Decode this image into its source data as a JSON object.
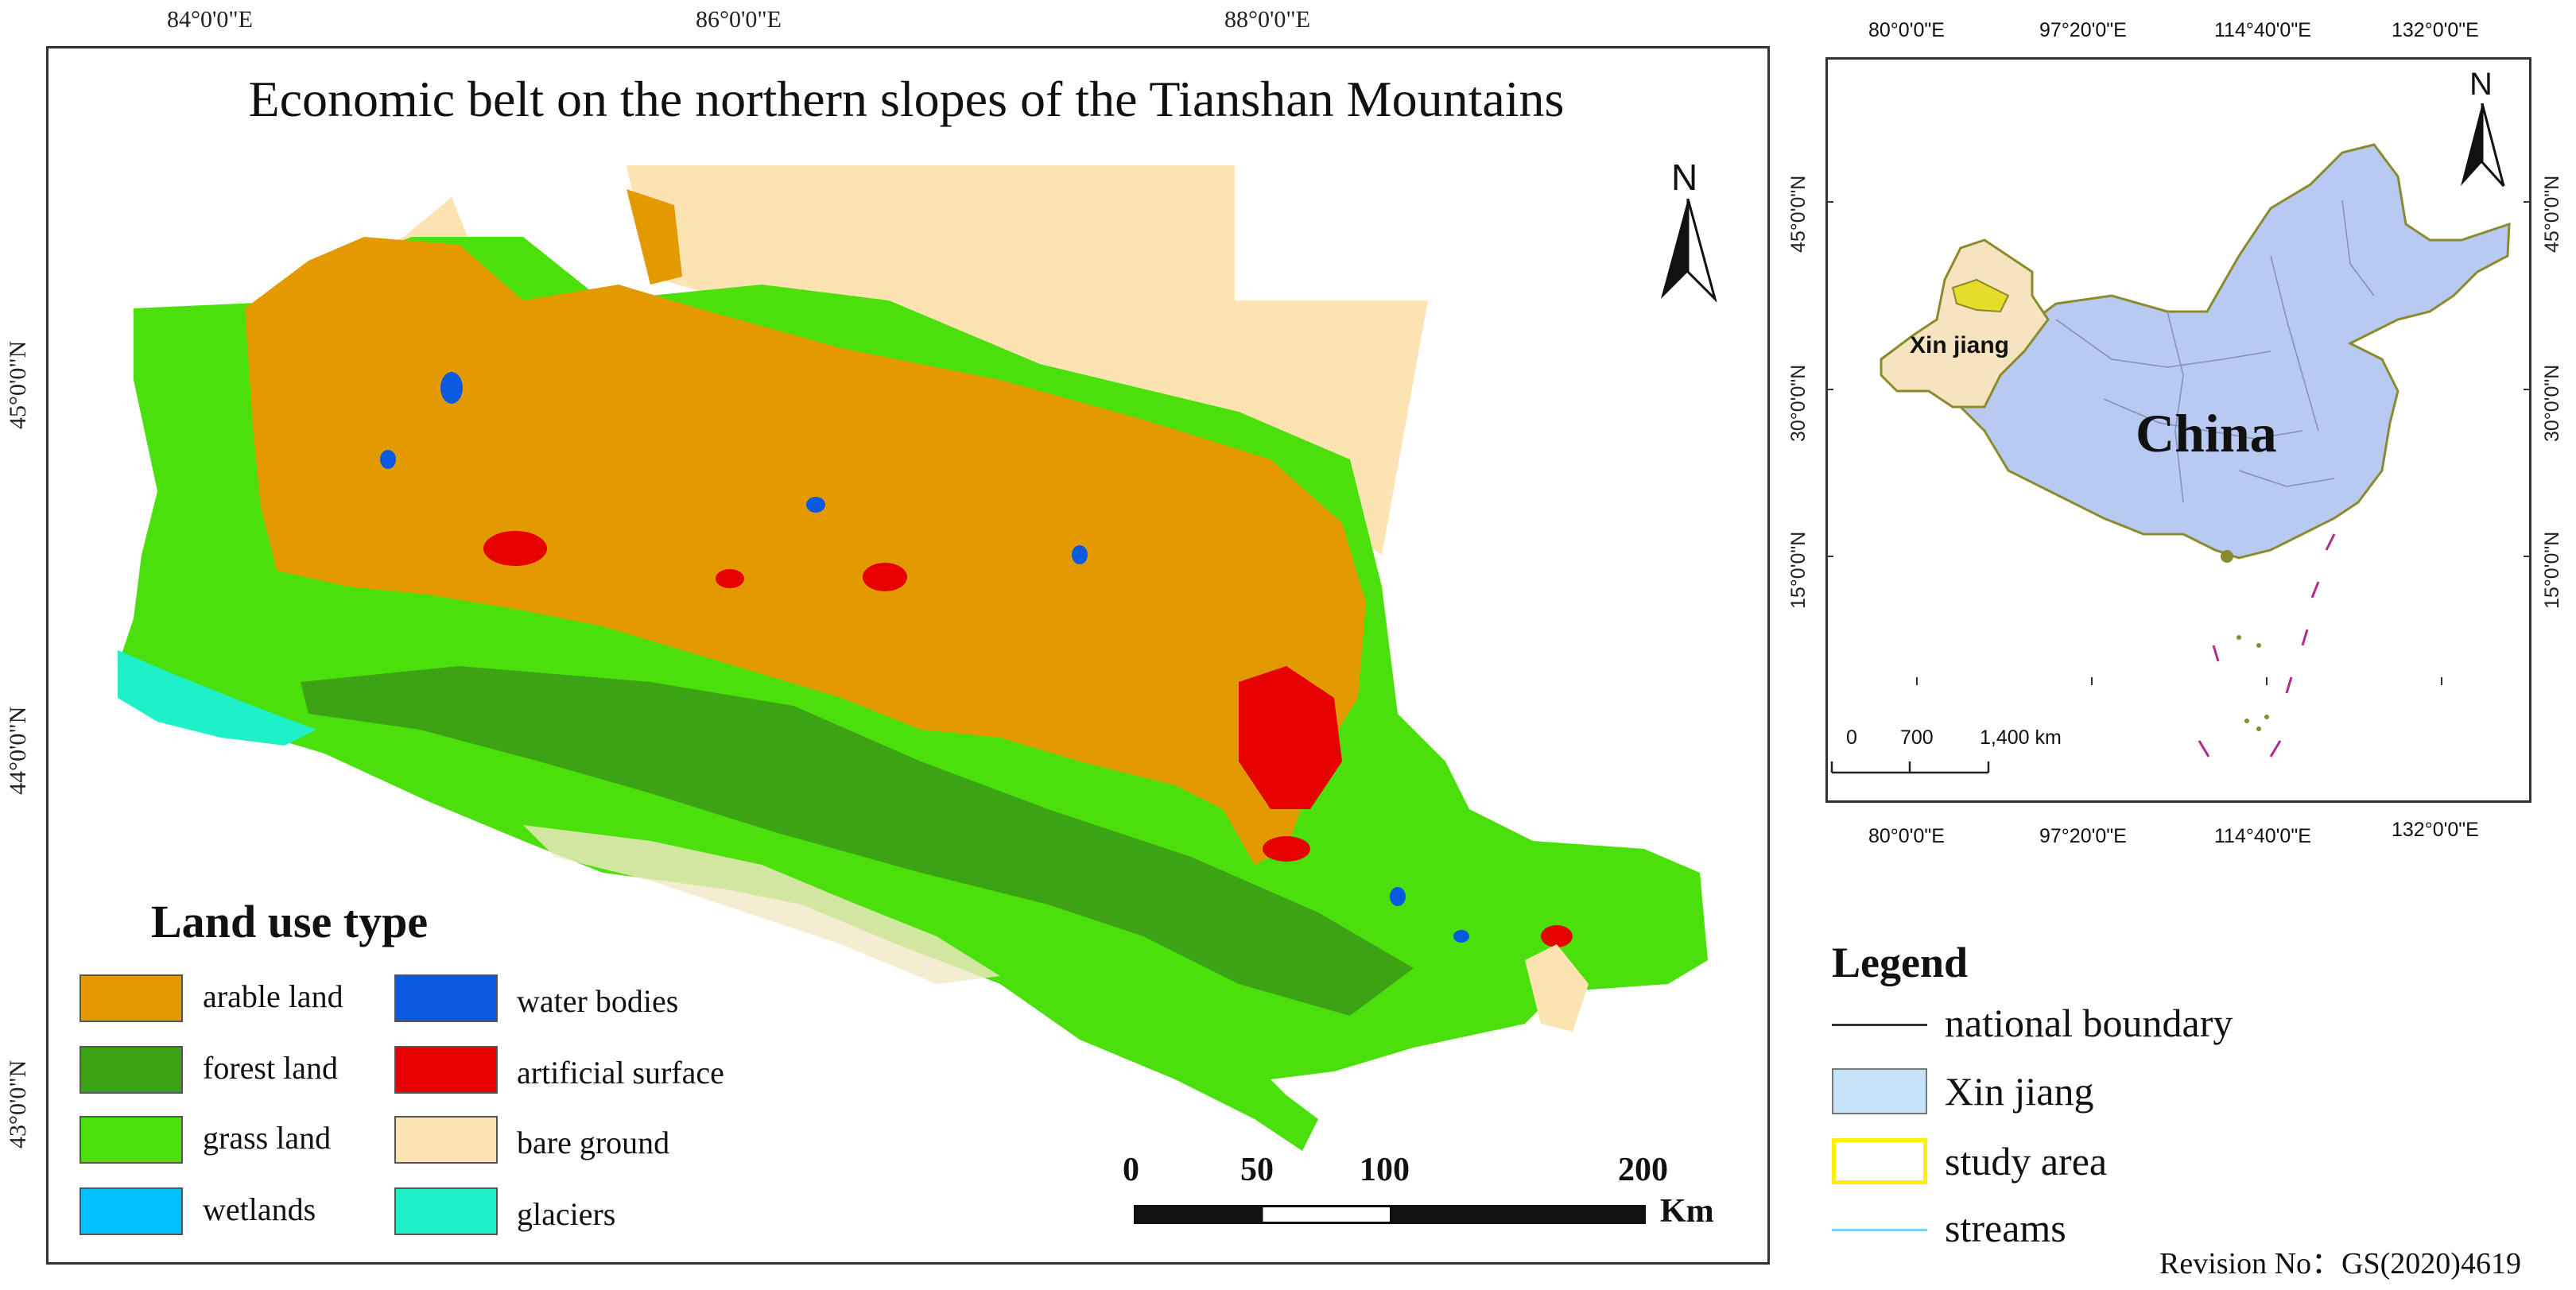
{
  "main_map": {
    "title": "Economic belt on the northern slopes of the Tianshan Mountains",
    "top_coords": [
      "84°0'0\"E",
      "86°0'0\"E",
      "88°0'0\"E"
    ],
    "left_coords": [
      "45°0'0\"N",
      "44°0'0\"N",
      "43°0'0\"N"
    ],
    "north": "N",
    "legend_title": "Land use type",
    "legend_items": [
      {
        "label": "arable land",
        "color": "#E39A00"
      },
      {
        "label": "forest land",
        "color": "#3BA314"
      },
      {
        "label": "grass land",
        "color": "#4BE00B"
      },
      {
        "label": "wetlands",
        "color": "#00BFFF"
      },
      {
        "label": "water bodies",
        "color": "#0A5AE0"
      },
      {
        "label": "artificial surface",
        "color": "#E60000"
      },
      {
        "label": "bare ground",
        "color": "#FBE3B2"
      },
      {
        "label": "glaciers",
        "color": "#1EF0C8"
      }
    ],
    "scale": {
      "ticks": [
        "0",
        "50",
        "100",
        "200"
      ],
      "unit": "Km"
    }
  },
  "inset_map": {
    "top_coords": [
      "80°0'0\"E",
      "97°20'0\"E",
      "114°40'0\"E",
      "132°0'0\"E"
    ],
    "bottom_coords": [
      "80°0'0\"E",
      "97°20'0\"E",
      "114°40'0\"E",
      "132°0'0\"E"
    ],
    "left_coords": [
      "45°0'0\"N",
      "30°0'0\"N",
      "15°0'0\"N"
    ],
    "right_coords": [
      "45°0'0\"N",
      "30°0'0\"N",
      "15°0'0\"N"
    ],
    "north": "N",
    "country_label": "China",
    "region_label": "Xin jiang",
    "scale": {
      "ticks": [
        "0",
        "700",
        "1,400 km"
      ]
    },
    "colors": {
      "china": "#B8C9F2",
      "xinjiang": "#F5E4BF",
      "study": "#E6DC2A"
    }
  },
  "right_legend": {
    "title": "Legend",
    "items": [
      {
        "label": "national boundary",
        "kind": "line",
        "color": "#333333"
      },
      {
        "label": "Xin jiang",
        "kind": "box",
        "color": "#C4E3F8"
      },
      {
        "label": "study area",
        "kind": "outline",
        "color": "#FFF000"
      },
      {
        "label": "streams",
        "kind": "line",
        "color": "#7FD4F0"
      }
    ]
  },
  "revision": "Revision No：GS(2020)4619"
}
